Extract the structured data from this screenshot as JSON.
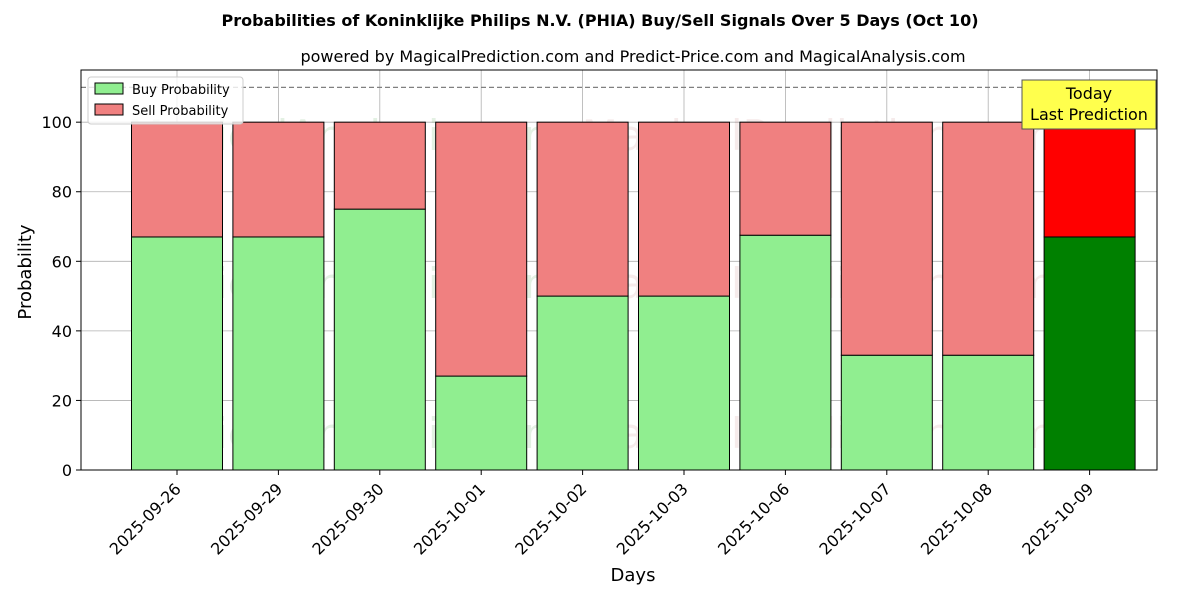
{
  "chart_data": {
    "type": "bar",
    "stacked": true,
    "title": "Probabilities of Koninklijke Philips N.V. (PHIA) Buy/Sell Signals Over 5 Days (Oct 10)",
    "subtitle": "powered by MagicalPrediction.com and Predict-Price.com and MagicalAnalysis.com",
    "xlabel": "Days",
    "ylabel": "Probability",
    "ylim": [
      0,
      115
    ],
    "yticks": [
      0,
      20,
      40,
      60,
      80,
      100
    ],
    "reference_line": 110,
    "grid": true,
    "legend_position": "top-left",
    "categories": [
      "2025-09-26",
      "2025-09-29",
      "2025-09-30",
      "2025-10-01",
      "2025-10-02",
      "2025-10-03",
      "2025-10-06",
      "2025-10-07",
      "2025-10-08",
      "2025-10-09"
    ],
    "series": [
      {
        "name": "Buy Probability",
        "values": [
          67,
          67,
          75,
          27,
          50,
          50,
          67.5,
          33,
          33,
          67
        ],
        "color": "#90ee90",
        "highlight_color": "#008000"
      },
      {
        "name": "Sell Probability",
        "values": [
          33,
          33,
          25,
          73,
          50,
          50,
          32.5,
          67,
          67,
          33
        ],
        "color": "#f08080",
        "highlight_color": "#ff0000"
      }
    ],
    "highlight_index": 9,
    "annotation": {
      "line1": "Today",
      "line2": "Last Prediction",
      "color": "#ffff4d"
    },
    "watermarks": [
      "MagicalAnalysis.com",
      "MagicalPrediction.com"
    ]
  }
}
